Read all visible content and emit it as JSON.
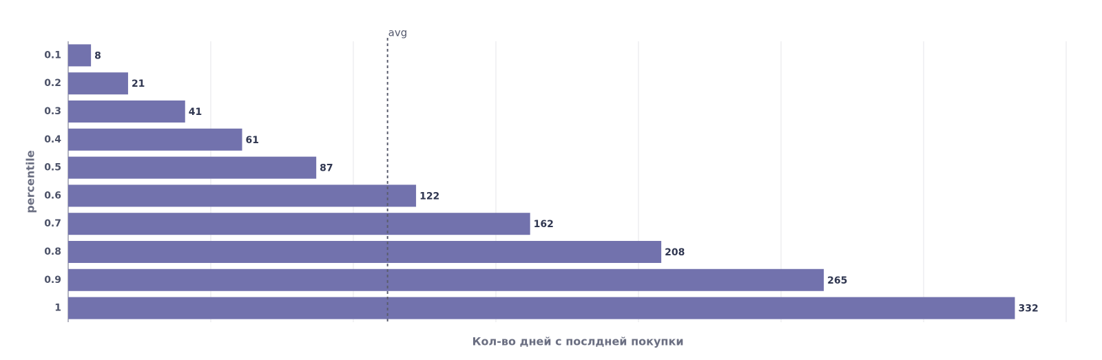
{
  "chart_data": {
    "type": "hbar",
    "x_label": "Кол-во дней с послдней покупки",
    "y_label": "percentile",
    "categories": [
      "0.1",
      "0.2",
      "0.3",
      "0.4",
      "0.5",
      "0.6",
      "0.7",
      "0.8",
      "0.9",
      "1"
    ],
    "values": [
      8,
      21,
      41,
      61,
      87,
      122,
      162,
      208,
      265,
      332
    ],
    "color": "#7272ad",
    "xlim": [
      0,
      350
    ],
    "xticks": [
      0,
      50,
      100,
      150,
      200,
      250,
      300,
      350
    ],
    "xtick_labels": false,
    "grid": true,
    "reference_line": {
      "label": "avg",
      "value": 112
    }
  }
}
